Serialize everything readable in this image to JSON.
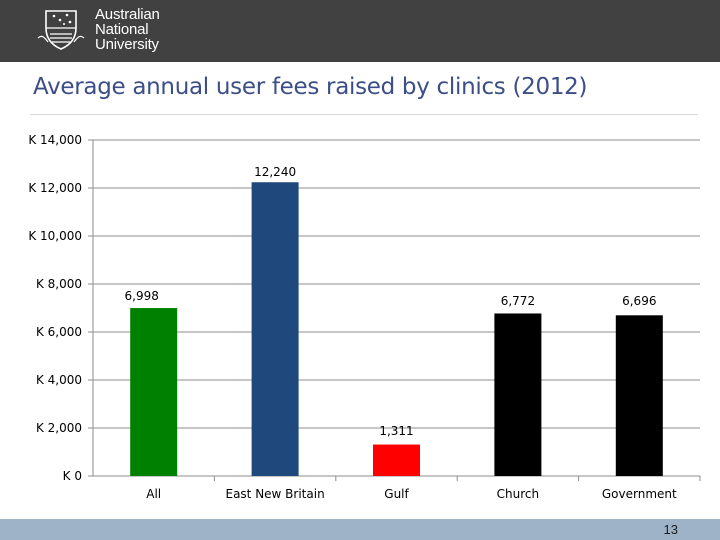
{
  "header": {
    "university_name_lines": [
      "Australian",
      "National",
      "University"
    ]
  },
  "slide": {
    "title": "Average annual user fees raised by clinics (2012)",
    "page_number": "13"
  },
  "chart_data": {
    "type": "bar",
    "title": "Average annual user fees raised by clinics (2012)",
    "categories": [
      "All",
      "East New Britain",
      "Gulf",
      "Church",
      "Government"
    ],
    "values": [
      6998,
      12240,
      1311,
      6772,
      6696
    ],
    "value_labels": [
      "6,998",
      "12,240",
      "1,311",
      "6,772",
      "6,696"
    ],
    "bar_colors": [
      "#008000",
      "#1f497d",
      "#ff0000",
      "#000000",
      "#000000"
    ],
    "ylim": [
      0,
      14000
    ],
    "yticks": [
      0,
      2000,
      4000,
      6000,
      8000,
      10000,
      12000,
      14000
    ],
    "ytick_labels": [
      "K 0",
      "K 2,000",
      "K 4,000",
      "K 6,000",
      "K 8,000",
      "K 10,000",
      "K 12,000",
      "K 14,000"
    ],
    "gridlines": true,
    "xlabel": "",
    "ylabel": "",
    "legend": "none"
  }
}
